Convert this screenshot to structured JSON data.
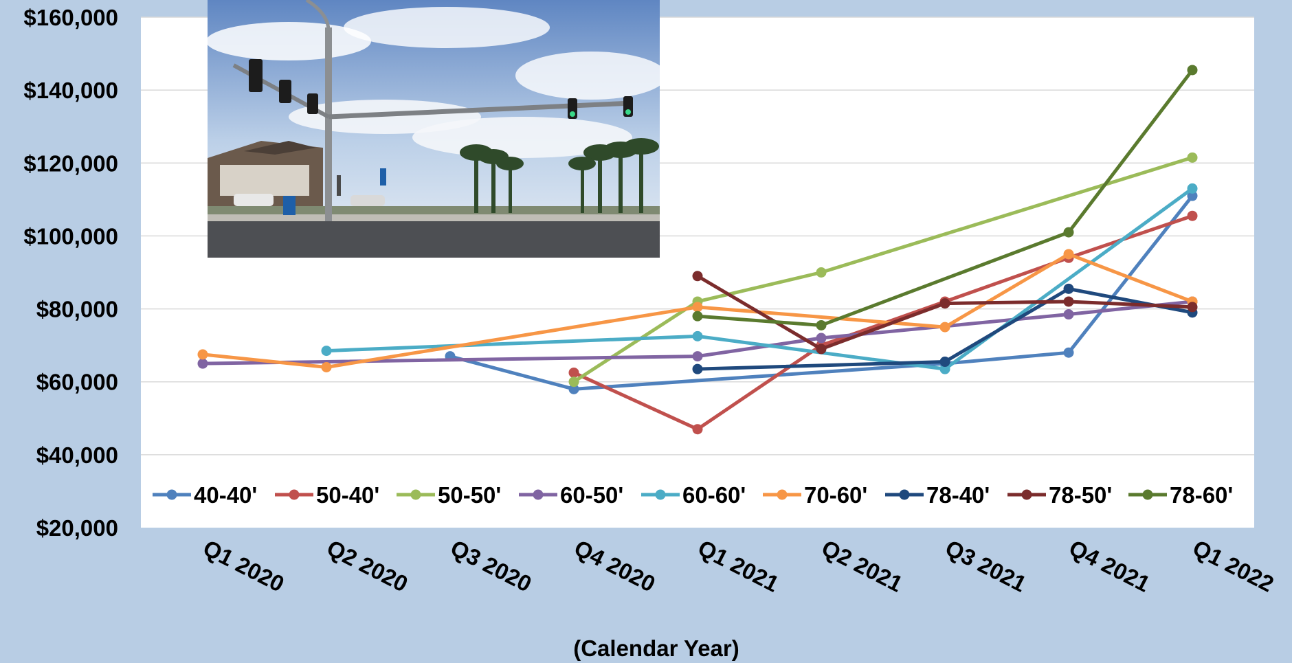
{
  "chart_data": {
    "type": "line",
    "categories": [
      "Q1 2020",
      "Q2 2020",
      "Q3 2020",
      "Q4 2020",
      "Q1 2021",
      "Q2 2021",
      "Q3 2021",
      "Q4 2021",
      "Q1 2022"
    ],
    "ylim": [
      20000,
      160000
    ],
    "yticks": [
      "$20,000",
      "$40,000",
      "$60,000",
      "$80,000",
      "$100,000",
      "$120,000",
      "$140,000",
      "$160,000"
    ],
    "ytick_values": [
      20000,
      40000,
      60000,
      80000,
      100000,
      120000,
      140000,
      160000
    ],
    "xlabel": "(Calendar Year)",
    "grid": true,
    "legend_position": "bottom",
    "photo_inset": "street intersection with traffic lights and palm trees",
    "series": [
      {
        "name": "40-40'",
        "color": "#4f81bd",
        "values": [
          null,
          null,
          67000,
          58000,
          null,
          null,
          65000,
          68000,
          111000
        ]
      },
      {
        "name": "50-40'",
        "color": "#c0504d",
        "values": [
          null,
          null,
          null,
          62500,
          47000,
          70000,
          82000,
          94000,
          105500
        ]
      },
      {
        "name": "50-50'",
        "color": "#9bbb59",
        "values": [
          null,
          null,
          null,
          60000,
          82000,
          90000,
          null,
          null,
          121500
        ]
      },
      {
        "name": "60-50'",
        "color": "#8064a2",
        "values": [
          65000,
          null,
          null,
          null,
          67000,
          72000,
          null,
          78500,
          82000
        ]
      },
      {
        "name": "60-60'",
        "color": "#4bacc6",
        "values": [
          null,
          68500,
          null,
          null,
          72500,
          null,
          63500,
          null,
          113000
        ]
      },
      {
        "name": "70-60'",
        "color": "#f79646",
        "values": [
          67500,
          64000,
          null,
          null,
          80500,
          null,
          75000,
          95000,
          82000
        ]
      },
      {
        "name": "78-40'",
        "color": "#1f497d",
        "values": [
          null,
          null,
          null,
          null,
          63500,
          null,
          65500,
          85500,
          79000
        ]
      },
      {
        "name": "78-50'",
        "color": "#7b2c2c",
        "values": [
          null,
          null,
          null,
          null,
          89000,
          69000,
          81500,
          82000,
          80500
        ]
      },
      {
        "name": "78-60'",
        "color": "#5a7a2e",
        "values": [
          null,
          null,
          null,
          null,
          78000,
          75500,
          null,
          101000,
          145500
        ]
      }
    ]
  }
}
